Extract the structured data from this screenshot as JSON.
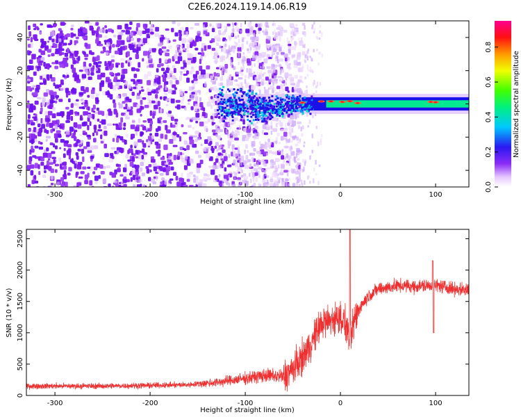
{
  "figure_title": "C2E6.2024.119.14.06.R19",
  "colors": {
    "snr_line": "#f03030",
    "axis": "#000000",
    "spectrum_low": "#7a14f0",
    "background": "#ffffff"
  },
  "chart_data": [
    {
      "type": "heatmap",
      "title": "C2E6.2024.119.14.06.R19",
      "xlabel": "Height of straight line (km)",
      "ylabel": "Frequency (Hz)",
      "xlim": [
        -330,
        135
      ],
      "ylim": [
        -50,
        50
      ],
      "x_ticks": [
        -300,
        -200,
        -100,
        0,
        100
      ],
      "y_ticks": [
        -40,
        -20,
        0,
        20,
        40
      ],
      "colorbar": {
        "label": "Normalized spectral amplitude",
        "range": [
          0.0,
          0.95
        ],
        "ticks": [
          0.0,
          0.2,
          0.4,
          0.6,
          0.8
        ],
        "colormap": "rainbow (white-purple-blue-cyan-green-yellow-red-magenta)"
      },
      "features": {
        "noise_region_x": [
          -330,
          -60
        ],
        "signal_band_center_hz": 0,
        "signal_band_half_width_hz": 4,
        "signal_onset_x": -130,
        "strong_band_x": [
          -15,
          135
        ]
      }
    },
    {
      "type": "line",
      "xlabel": "Height of straight line (km)",
      "ylabel": "SNR (10 * v/v)",
      "xlim": [
        -330,
        135
      ],
      "ylim": [
        0,
        2650
      ],
      "x_ticks": [
        -300,
        -200,
        -100,
        0,
        100
      ],
      "y_ticks": [
        0,
        500,
        1000,
        1500,
        2000,
        2500
      ],
      "series": [
        {
          "x": [
            -330,
            -300,
            -250,
            -200,
            -160,
            -130,
            -100,
            -80,
            -60,
            -50,
            -40,
            -30,
            -20,
            -10,
            0,
            5,
            10,
            15,
            20,
            30,
            40,
            60,
            80,
            100,
            120,
            135
          ],
          "values": [
            150,
            150,
            150,
            160,
            170,
            210,
            270,
            320,
            300,
            420,
            600,
            850,
            1150,
            1200,
            1250,
            1150,
            900,
            1200,
            1400,
            1600,
            1700,
            1750,
            1740,
            1760,
            1700,
            1680
          ]
        }
      ]
    }
  ]
}
